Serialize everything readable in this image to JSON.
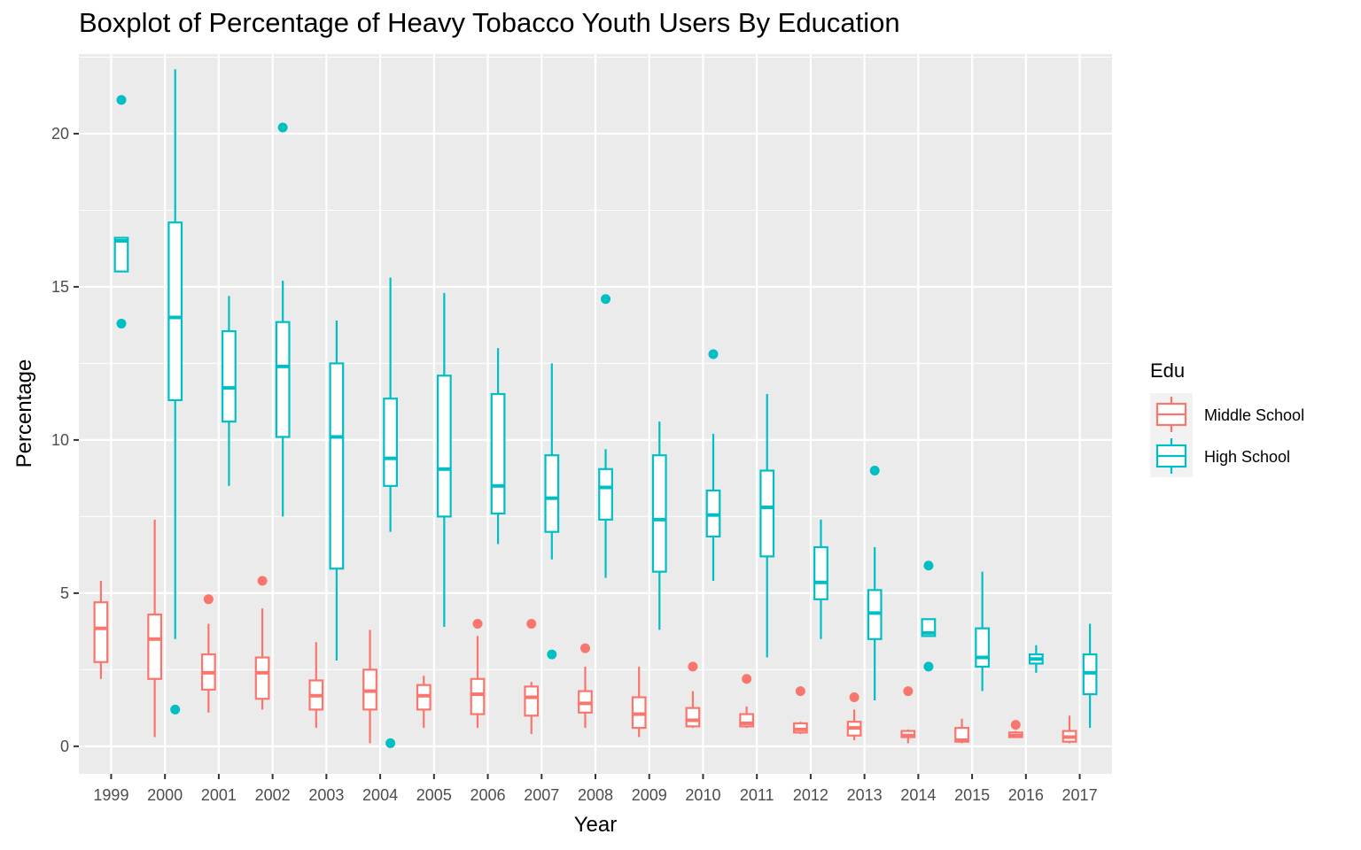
{
  "chart_data": {
    "type": "boxplot",
    "title": "Boxplot of Percentage of Heavy Tobacco Youth Users By Education",
    "xlabel": "Year",
    "ylabel": "Percentage",
    "ylim": [
      -0.9,
      22.6
    ],
    "yticks": [
      0,
      5,
      10,
      15,
      20
    ],
    "grid": true,
    "legend_position": "right",
    "legend_title": "Edu",
    "categories": [
      "1999",
      "2000",
      "2001",
      "2002",
      "2003",
      "2004",
      "2005",
      "2006",
      "2007",
      "2008",
      "2009",
      "2010",
      "2011",
      "2012",
      "2013",
      "2014",
      "2015",
      "2016",
      "2017"
    ],
    "series": [
      {
        "name": "Middle School",
        "color": "#F8766D",
        "boxes": [
          {
            "low": 2.2,
            "q1": 2.75,
            "median": 3.85,
            "q3": 4.7,
            "high": 5.4,
            "outliers": []
          },
          {
            "low": 0.3,
            "q1": 2.2,
            "median": 3.5,
            "q3": 4.3,
            "high": 7.4,
            "outliers": []
          },
          {
            "low": 1.1,
            "q1": 1.85,
            "median": 2.4,
            "q3": 3.0,
            "high": 4.0,
            "outliers": [
              4.8
            ]
          },
          {
            "low": 1.2,
            "q1": 1.55,
            "median": 2.4,
            "q3": 2.9,
            "high": 4.5,
            "outliers": [
              5.4
            ]
          },
          {
            "low": 0.6,
            "q1": 1.2,
            "median": 1.65,
            "q3": 2.15,
            "high": 3.4,
            "outliers": []
          },
          {
            "low": 0.1,
            "q1": 1.2,
            "median": 1.8,
            "q3": 2.5,
            "high": 3.8,
            "outliers": []
          },
          {
            "low": 0.6,
            "q1": 1.2,
            "median": 1.65,
            "q3": 2.0,
            "high": 2.3,
            "outliers": []
          },
          {
            "low": 0.6,
            "q1": 1.05,
            "median": 1.7,
            "q3": 2.2,
            "high": 3.6,
            "outliers": [
              4.0
            ]
          },
          {
            "low": 0.4,
            "q1": 1.0,
            "median": 1.6,
            "q3": 1.95,
            "high": 2.1,
            "outliers": [
              4.0
            ]
          },
          {
            "low": 0.6,
            "q1": 1.1,
            "median": 1.4,
            "q3": 1.8,
            "high": 2.6,
            "outliers": [
              3.2
            ]
          },
          {
            "low": 0.3,
            "q1": 0.6,
            "median": 1.05,
            "q3": 1.6,
            "high": 2.6,
            "outliers": []
          },
          {
            "low": 0.6,
            "q1": 0.65,
            "median": 0.85,
            "q3": 1.25,
            "high": 1.8,
            "outliers": [
              2.6
            ]
          },
          {
            "low": 0.6,
            "q1": 0.65,
            "median": 0.75,
            "q3": 1.05,
            "high": 1.3,
            "outliers": [
              2.2
            ]
          },
          {
            "low": 0.4,
            "q1": 0.45,
            "median": 0.55,
            "q3": 0.75,
            "high": 0.8,
            "outliers": [
              1.8
            ]
          },
          {
            "low": 0.2,
            "q1": 0.35,
            "median": 0.6,
            "q3": 0.8,
            "high": 1.2,
            "outliers": [
              1.6
            ]
          },
          {
            "low": 0.1,
            "q1": 0.3,
            "median": 0.35,
            "q3": 0.5,
            "high": 0.55,
            "outliers": [
              1.8
            ]
          },
          {
            "low": 0.1,
            "q1": 0.15,
            "median": 0.2,
            "q3": 0.6,
            "high": 0.9,
            "outliers": []
          },
          {
            "low": 0.3,
            "q1": 0.3,
            "median": 0.35,
            "q3": 0.45,
            "high": 0.5,
            "outliers": [
              0.7
            ]
          },
          {
            "low": 0.1,
            "q1": 0.15,
            "median": 0.3,
            "q3": 0.5,
            "high": 1.0,
            "outliers": []
          }
        ]
      },
      {
        "name": "High School",
        "color": "#00BFC4",
        "boxes": [
          {
            "low": 15.5,
            "q1": 15.5,
            "median": 16.5,
            "q3": 16.6,
            "high": 16.6,
            "outliers": [
              21.1,
              13.8
            ]
          },
          {
            "low": 3.5,
            "q1": 11.3,
            "median": 14.0,
            "q3": 17.1,
            "high": 22.1,
            "outliers": [
              1.2
            ]
          },
          {
            "low": 8.5,
            "q1": 10.6,
            "median": 11.7,
            "q3": 13.55,
            "high": 14.7,
            "outliers": []
          },
          {
            "low": 7.5,
            "q1": 10.1,
            "median": 12.4,
            "q3": 13.85,
            "high": 15.2,
            "outliers": [
              20.2
            ]
          },
          {
            "low": 2.8,
            "q1": 5.8,
            "median": 10.1,
            "q3": 12.5,
            "high": 13.9,
            "outliers": []
          },
          {
            "low": 7.0,
            "q1": 8.5,
            "median": 9.4,
            "q3": 11.35,
            "high": 15.3,
            "outliers": [
              0.1
            ]
          },
          {
            "low": 3.9,
            "q1": 7.5,
            "median": 9.05,
            "q3": 12.1,
            "high": 14.8,
            "outliers": []
          },
          {
            "low": 6.6,
            "q1": 7.6,
            "median": 8.5,
            "q3": 11.5,
            "high": 13.0,
            "outliers": []
          },
          {
            "low": 6.1,
            "q1": 7.0,
            "median": 8.1,
            "q3": 9.5,
            "high": 12.5,
            "outliers": [
              3.0
            ]
          },
          {
            "low": 5.5,
            "q1": 7.4,
            "median": 8.45,
            "q3": 9.05,
            "high": 9.7,
            "outliers": [
              14.6
            ]
          },
          {
            "low": 3.8,
            "q1": 5.7,
            "median": 7.4,
            "q3": 9.5,
            "high": 10.6,
            "outliers": []
          },
          {
            "low": 5.4,
            "q1": 6.85,
            "median": 7.55,
            "q3": 8.35,
            "high": 10.2,
            "outliers": [
              12.8
            ]
          },
          {
            "low": 2.9,
            "q1": 6.2,
            "median": 7.8,
            "q3": 9.0,
            "high": 11.5,
            "outliers": []
          },
          {
            "low": 3.5,
            "q1": 4.8,
            "median": 5.35,
            "q3": 6.5,
            "high": 7.4,
            "outliers": []
          },
          {
            "low": 1.5,
            "q1": 3.5,
            "median": 4.35,
            "q3": 5.1,
            "high": 6.5,
            "outliers": [
              9.0
            ]
          },
          {
            "low": 3.6,
            "q1": 3.6,
            "median": 3.7,
            "q3": 4.15,
            "high": 4.15,
            "outliers": [
              5.9,
              2.6
            ]
          },
          {
            "low": 1.8,
            "q1": 2.6,
            "median": 2.9,
            "q3": 3.85,
            "high": 5.7,
            "outliers": []
          },
          {
            "low": 2.4,
            "q1": 2.7,
            "median": 2.85,
            "q3": 3.0,
            "high": 3.3,
            "outliers": []
          },
          {
            "low": 0.6,
            "q1": 1.7,
            "median": 2.4,
            "q3": 3.0,
            "high": 4.0,
            "outliers": []
          }
        ]
      }
    ]
  }
}
